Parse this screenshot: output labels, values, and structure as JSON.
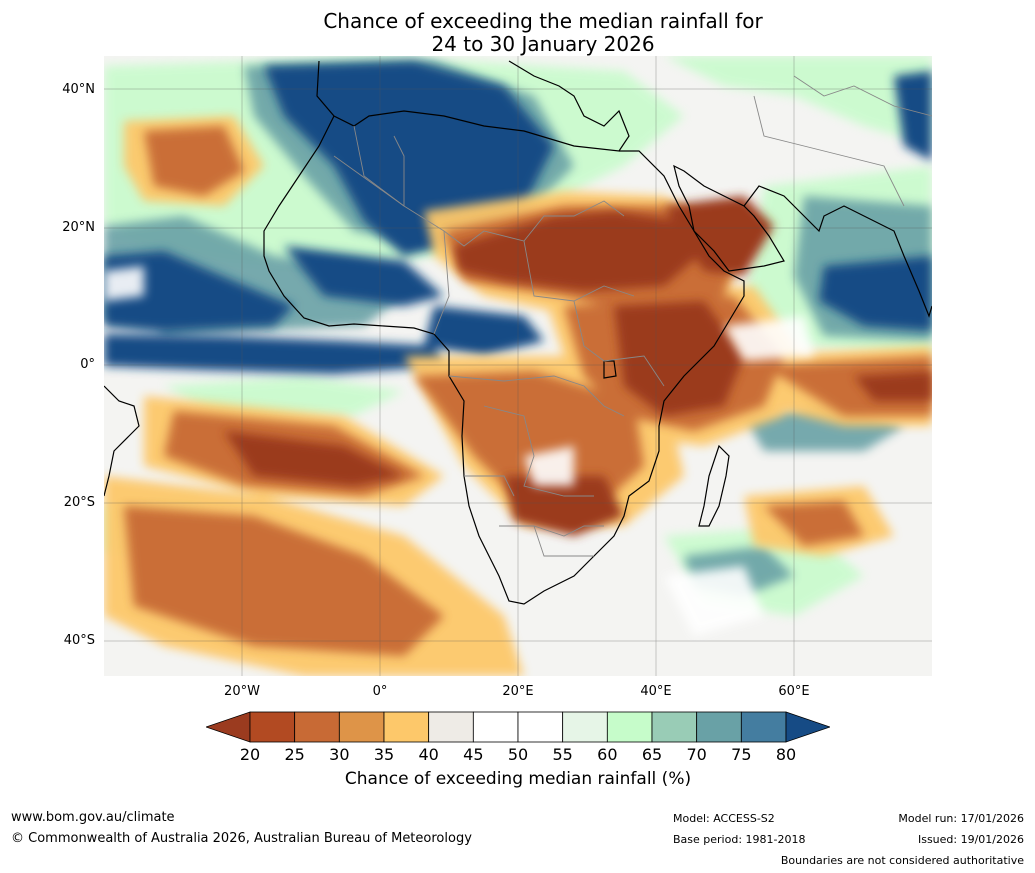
{
  "title": {
    "line1": "Chance of exceeding the median rainfall for",
    "line2": "24 to 30 January 2026"
  },
  "map": {
    "lat_labels": [
      "40°N",
      "20°N",
      "0°",
      "20°S",
      "40°S"
    ],
    "lon_labels": [
      "20°W",
      "0°",
      "20°E",
      "40°E",
      "60°E"
    ]
  },
  "colorbar": {
    "ticks": [
      "20",
      "25",
      "30",
      "35",
      "40",
      "45",
      "50",
      "55",
      "60",
      "65",
      "70",
      "75",
      "80"
    ],
    "colors": [
      "#9b3b1f",
      "#b24a22",
      "#c86a35",
      "#de9448",
      "#fdc86a",
      "#eeebe6",
      "#ffffff",
      "#ffffff",
      "#e6f5e7",
      "#c6fcca",
      "#99ccb6",
      "#69a1a6",
      "#447da0",
      "#164b85"
    ],
    "label": "Chance of exceeding median rainfall (%)"
  },
  "footer": {
    "website": "www.bom.gov.au/climate",
    "copyright": "© Commonwealth of Australia 2026, Australian Bureau of Meteorology",
    "model": "Model: ACCESS-S2",
    "base_period": "Base period: 1981-2018",
    "model_run": "Model run: 17/01/2026",
    "issued": "Issued: 19/01/2026",
    "disclaimer": "Boundaries are not considered authoritative"
  }
}
